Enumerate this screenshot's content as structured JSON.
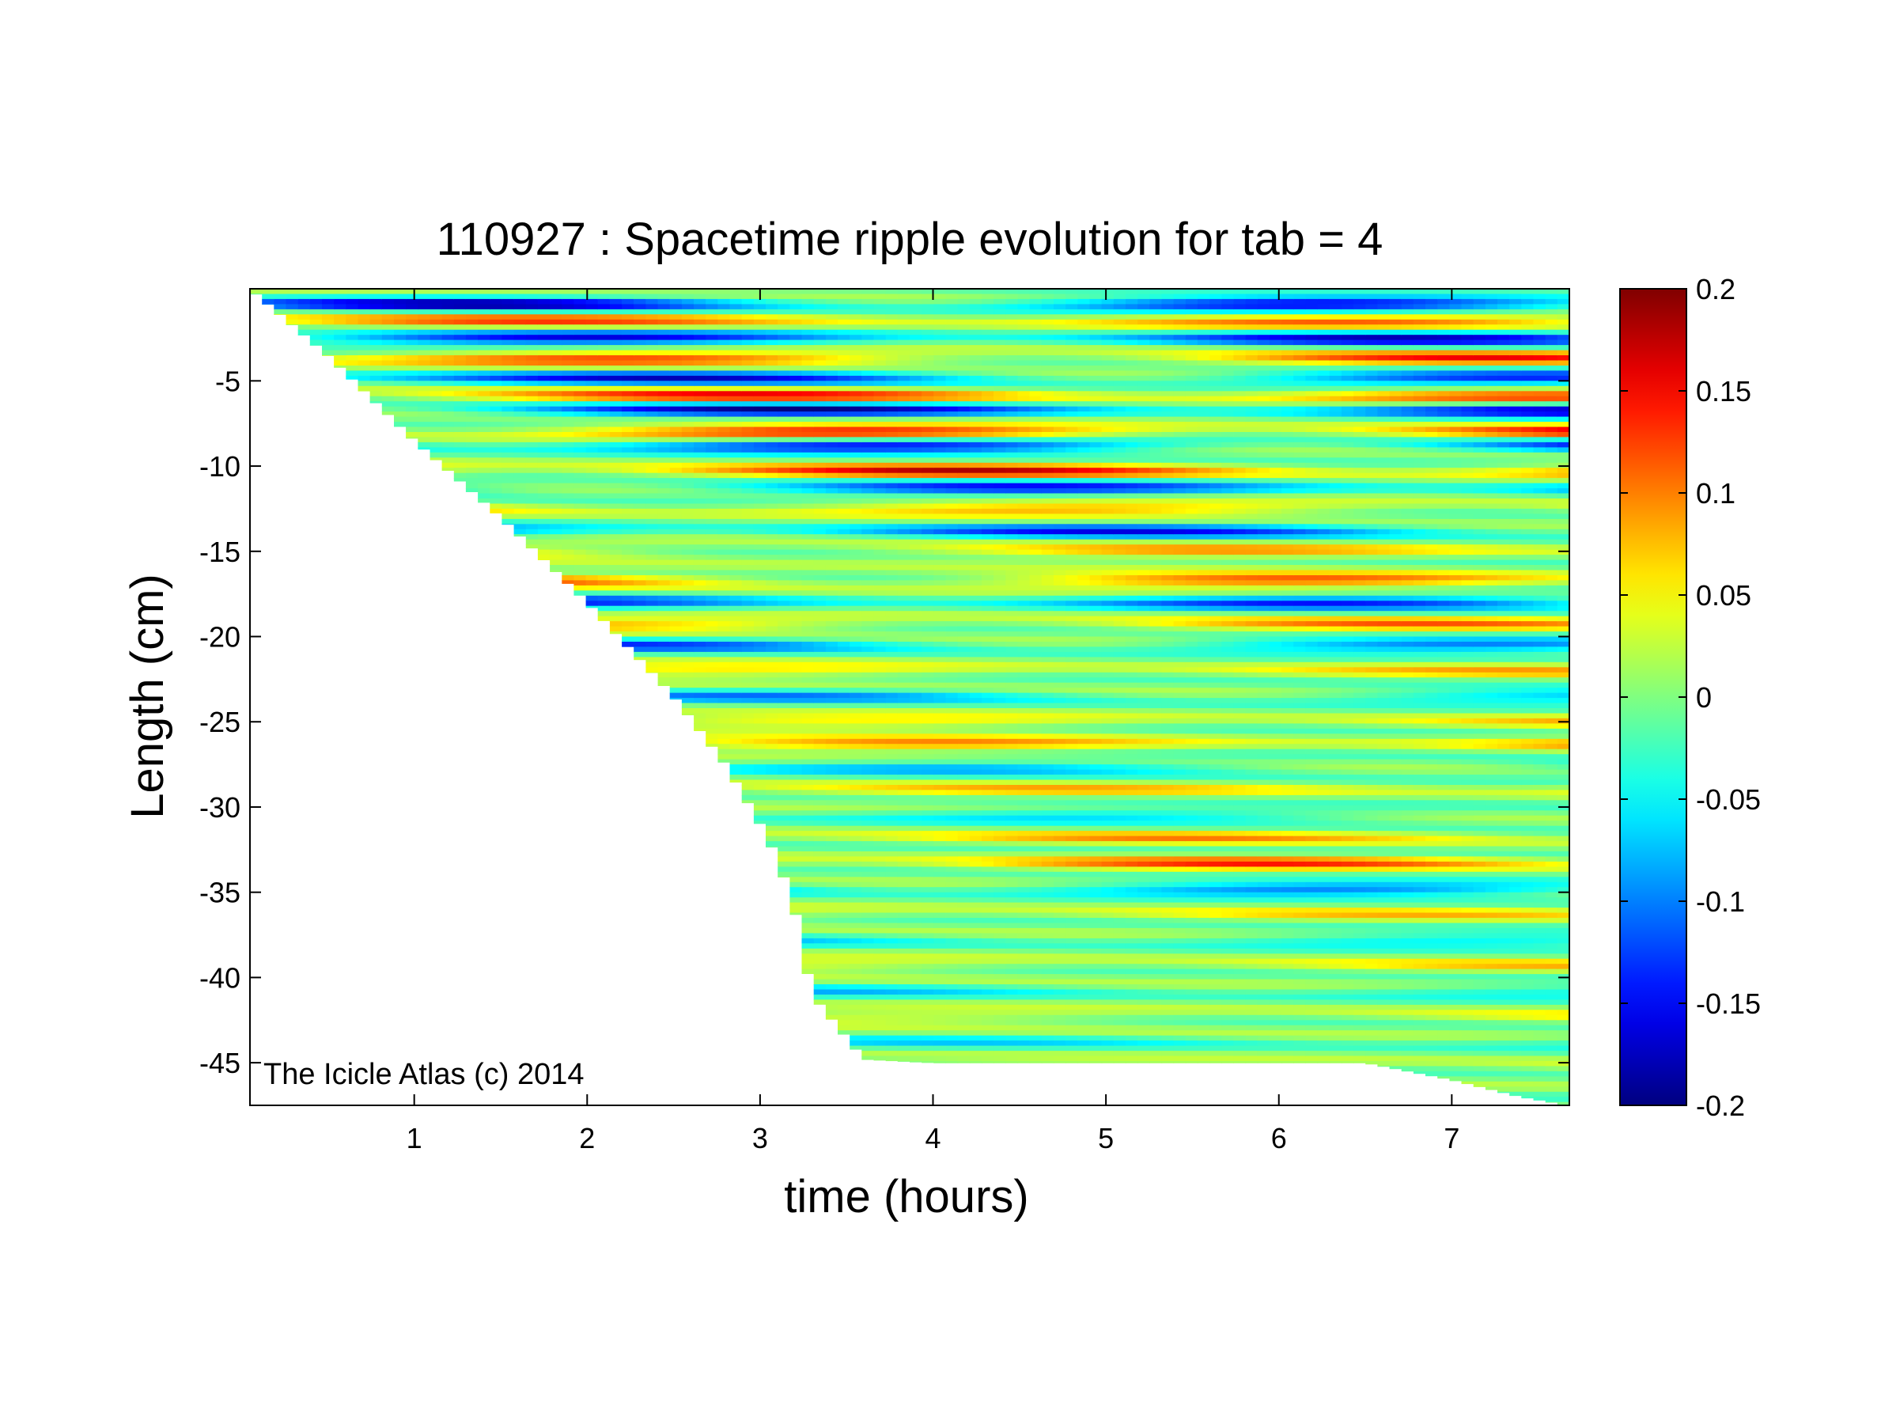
{
  "chart_data": {
    "type": "heatmap",
    "title": "110927 : Spacetime ripple evolution for tab = 4",
    "xlabel": "time (hours)",
    "ylabel": "Length (cm)",
    "xlim": [
      0.05,
      7.68
    ],
    "ylim": [
      -47.5,
      0.4
    ],
    "xticks": [
      1,
      2,
      3,
      4,
      5,
      6,
      7
    ],
    "xtick_labels": [
      "1",
      "2",
      "3",
      "4",
      "5",
      "6",
      "7"
    ],
    "yticks": [
      -5,
      -10,
      -15,
      -20,
      -25,
      -30,
      -35,
      -40,
      -45
    ],
    "ytick_labels": [
      "-5",
      "-10",
      "-15",
      "-20",
      "-25",
      "-30",
      "-35",
      "-40",
      "-45"
    ],
    "colorbar": {
      "colormap": "jet",
      "clim": [
        -0.2,
        0.2
      ],
      "ticks": [
        0.2,
        0.15,
        0.1,
        0.05,
        0,
        -0.05,
        -0.1,
        -0.15,
        -0.2
      ],
      "tick_labels": [
        "0.2",
        "0.15",
        "0.1",
        "0.05",
        "0",
        "-0.05",
        "-0.1",
        "-0.15",
        "-0.2"
      ]
    },
    "data_boundary": {
      "description_points_time_hours": [
        0.05,
        0.5,
        1.0,
        1.5,
        2.0,
        2.5,
        2.8,
        3.0,
        3.1,
        3.2,
        3.3,
        3.6,
        4.0,
        5.0,
        6.5,
        7.0,
        7.4,
        7.68
      ],
      "lower_edge_length_cm": [
        0.4,
        -3.5,
        -8.5,
        -13.0,
        -18.0,
        -23.5,
        -27.5,
        -31.0,
        -33.0,
        -36.0,
        -41.0,
        -44.8,
        -45.0,
        -45.0,
        -45.0,
        -46.0,
        -47.0,
        -47.5
      ]
    },
    "ripple_bands": [
      {
        "length_cm": -0.5,
        "amplitude": -0.18
      },
      {
        "length_cm": -1.5,
        "amplitude": 0.12
      },
      {
        "length_cm": -2.5,
        "amplitude": -0.17
      },
      {
        "length_cm": -3.7,
        "amplitude": 0.14
      },
      {
        "length_cm": -4.8,
        "amplitude": -0.16
      },
      {
        "length_cm": -5.9,
        "amplitude": 0.15
      },
      {
        "length_cm": -6.7,
        "amplitude": -0.19
      },
      {
        "length_cm": -8.0,
        "amplitude": 0.17
      },
      {
        "length_cm": -8.8,
        "amplitude": -0.17
      },
      {
        "length_cm": -10.3,
        "amplitude": 0.16
      },
      {
        "length_cm": -11.3,
        "amplitude": -0.15
      },
      {
        "length_cm": -12.5,
        "amplitude": 0.1
      },
      {
        "length_cm": -13.8,
        "amplitude": -0.14
      },
      {
        "length_cm": -15.0,
        "amplitude": 0.09
      },
      {
        "length_cm": -16.7,
        "amplitude": 0.13
      },
      {
        "length_cm": -18.0,
        "amplitude": -0.14
      },
      {
        "length_cm": -19.3,
        "amplitude": 0.1
      },
      {
        "length_cm": -20.5,
        "amplitude": -0.12
      },
      {
        "length_cm": -22.0,
        "amplitude": 0.07
      },
      {
        "length_cm": -23.5,
        "amplitude": -0.09
      },
      {
        "length_cm": -25.0,
        "amplitude": 0.07
      },
      {
        "length_cm": -26.3,
        "amplitude": 0.1
      },
      {
        "length_cm": -27.7,
        "amplitude": -0.08
      },
      {
        "length_cm": -29.0,
        "amplitude": 0.07
      },
      {
        "length_cm": -30.5,
        "amplitude": -0.07
      },
      {
        "length_cm": -31.8,
        "amplitude": 0.08
      },
      {
        "length_cm": -33.3,
        "amplitude": 0.12
      },
      {
        "length_cm": -34.8,
        "amplitude": -0.12
      },
      {
        "length_cm": -36.3,
        "amplitude": 0.06
      },
      {
        "length_cm": -37.8,
        "amplitude": -0.07
      },
      {
        "length_cm": -39.3,
        "amplitude": 0.06
      },
      {
        "length_cm": -40.8,
        "amplitude": -0.06
      },
      {
        "length_cm": -42.3,
        "amplitude": 0.05
      },
      {
        "length_cm": -43.8,
        "amplitude": -0.05
      },
      {
        "length_cm": -45.3,
        "amplitude": 0.04
      },
      {
        "length_cm": -46.8,
        "amplitude": -0.04
      }
    ],
    "watermark": "The Icicle Atlas (c) 2014"
  }
}
